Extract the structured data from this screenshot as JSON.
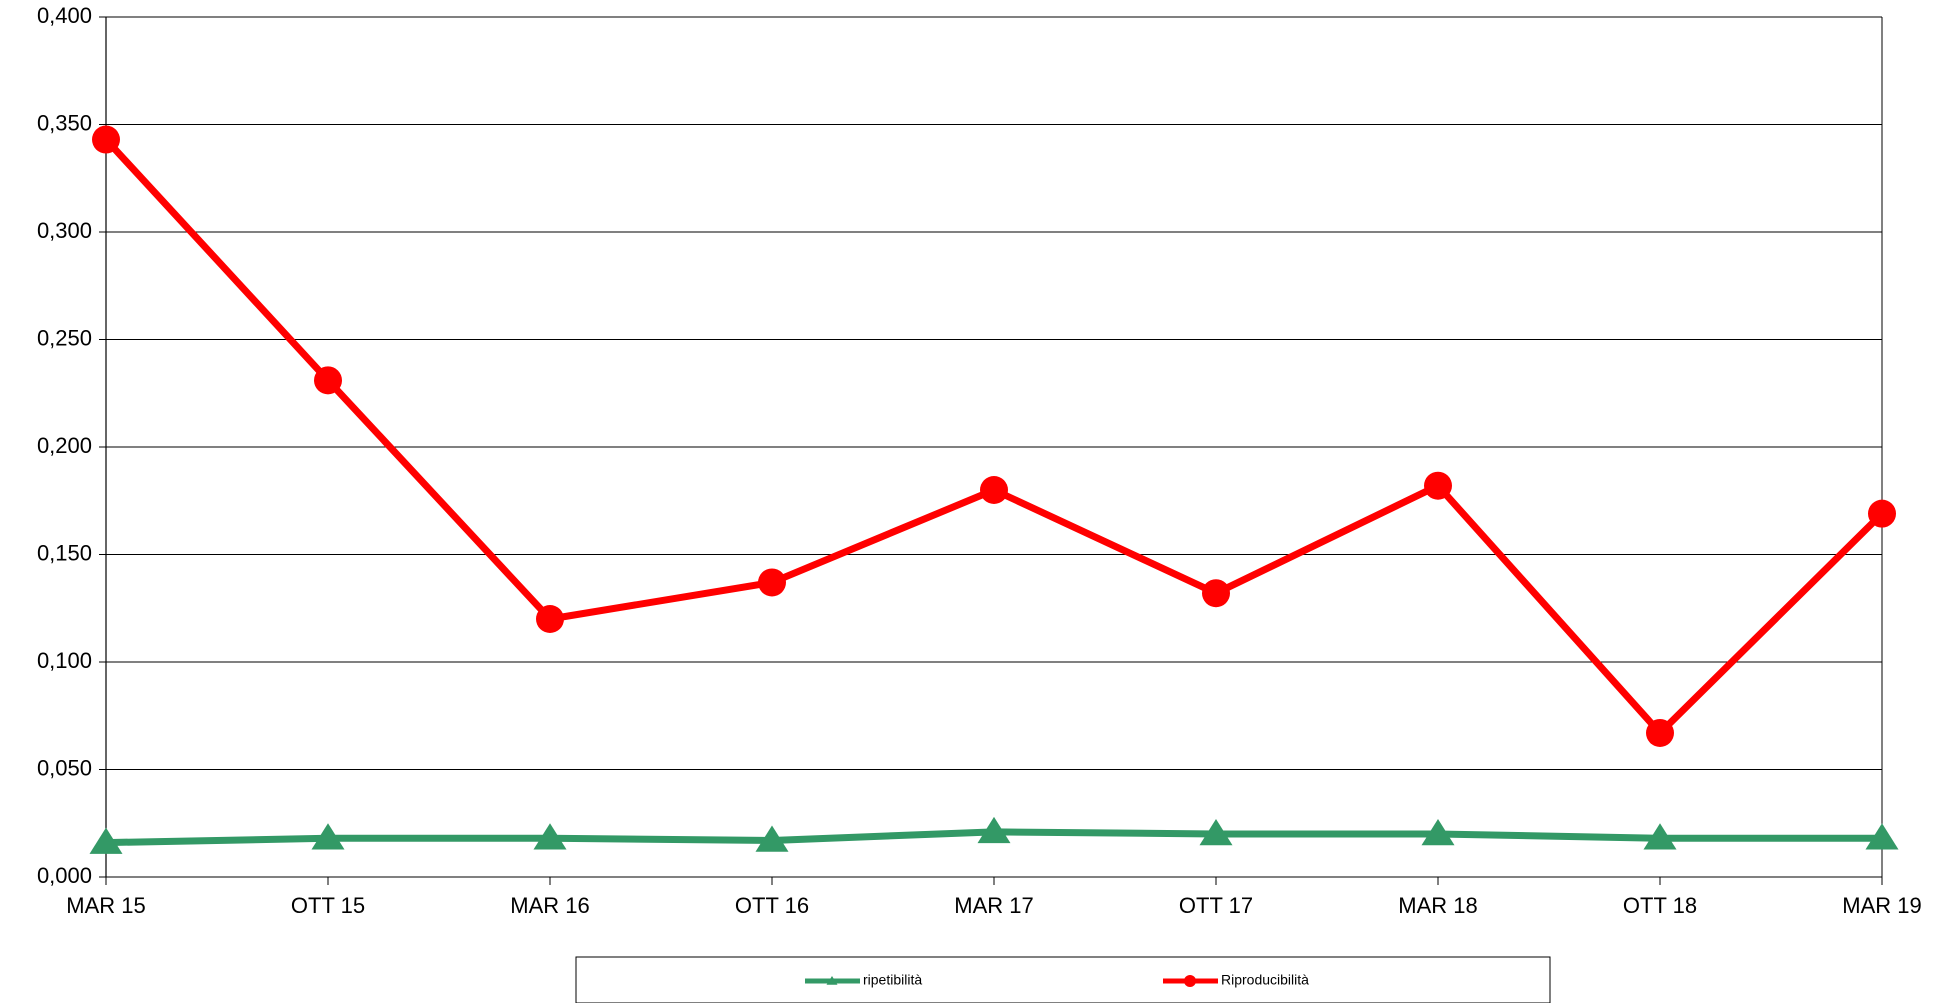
{
  "chart_data": {
    "type": "line",
    "categories": [
      "MAR 15",
      "OTT 15",
      "MAR 16",
      "OTT 16",
      "MAR 17",
      "OTT 17",
      "MAR 18",
      "OTT 18",
      "MAR 19"
    ],
    "series": [
      {
        "name": "ripetibilità",
        "color": "#339966",
        "marker": "triangle",
        "values": [
          0.016,
          0.018,
          0.018,
          0.017,
          0.021,
          0.02,
          0.02,
          0.018,
          0.018
        ]
      },
      {
        "name": "Riproducibilità",
        "color": "#ff0000",
        "marker": "circle",
        "values": [
          0.343,
          0.231,
          0.12,
          0.137,
          0.18,
          0.132,
          0.182,
          0.067,
          0.169
        ]
      }
    ],
    "ylim": [
      0,
      0.4
    ],
    "yticks": [
      {
        "value": 0,
        "label": "0,000"
      },
      {
        "value": 0.05,
        "label": "0,050"
      },
      {
        "value": 0.1,
        "label": "0,100"
      },
      {
        "value": 0.15,
        "label": "0,150"
      },
      {
        "value": 0.2,
        "label": "0,200"
      },
      {
        "value": 0.25,
        "label": "0,250"
      },
      {
        "value": 0.3,
        "label": "0,300"
      },
      {
        "value": 0.35,
        "label": "0,350"
      },
      {
        "value": 0.4,
        "label": "0,400"
      }
    ],
    "grid": true,
    "legend": "bottom"
  }
}
